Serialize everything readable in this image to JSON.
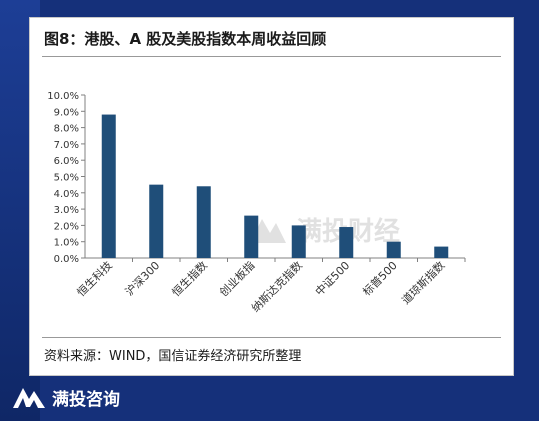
{
  "title": "图8：港股、A 股及美股指数本周收益回顾",
  "source": "资料来源：WIND，国信证券经济研究所整理",
  "watermark": "满投财经",
  "footer_brand": "满投咨询",
  "colors": {
    "bar": "#1f4e79",
    "background": "#15307a"
  },
  "chart_data": {
    "type": "bar",
    "categories": [
      "恒生科技",
      "沪深300",
      "恒生指数",
      "创业板指",
      "纳斯达克指数",
      "中证500",
      "标普500",
      "道琼斯指数"
    ],
    "values": [
      8.8,
      4.5,
      4.4,
      2.6,
      2.0,
      1.9,
      1.0,
      0.7
    ],
    "yticks": [
      "0.0%",
      "1.0%",
      "2.0%",
      "3.0%",
      "4.0%",
      "5.0%",
      "6.0%",
      "7.0%",
      "8.0%",
      "9.0%",
      "10.0%"
    ],
    "ylim": [
      0,
      10
    ],
    "unit": "%",
    "grid": false,
    "legend": "none"
  }
}
